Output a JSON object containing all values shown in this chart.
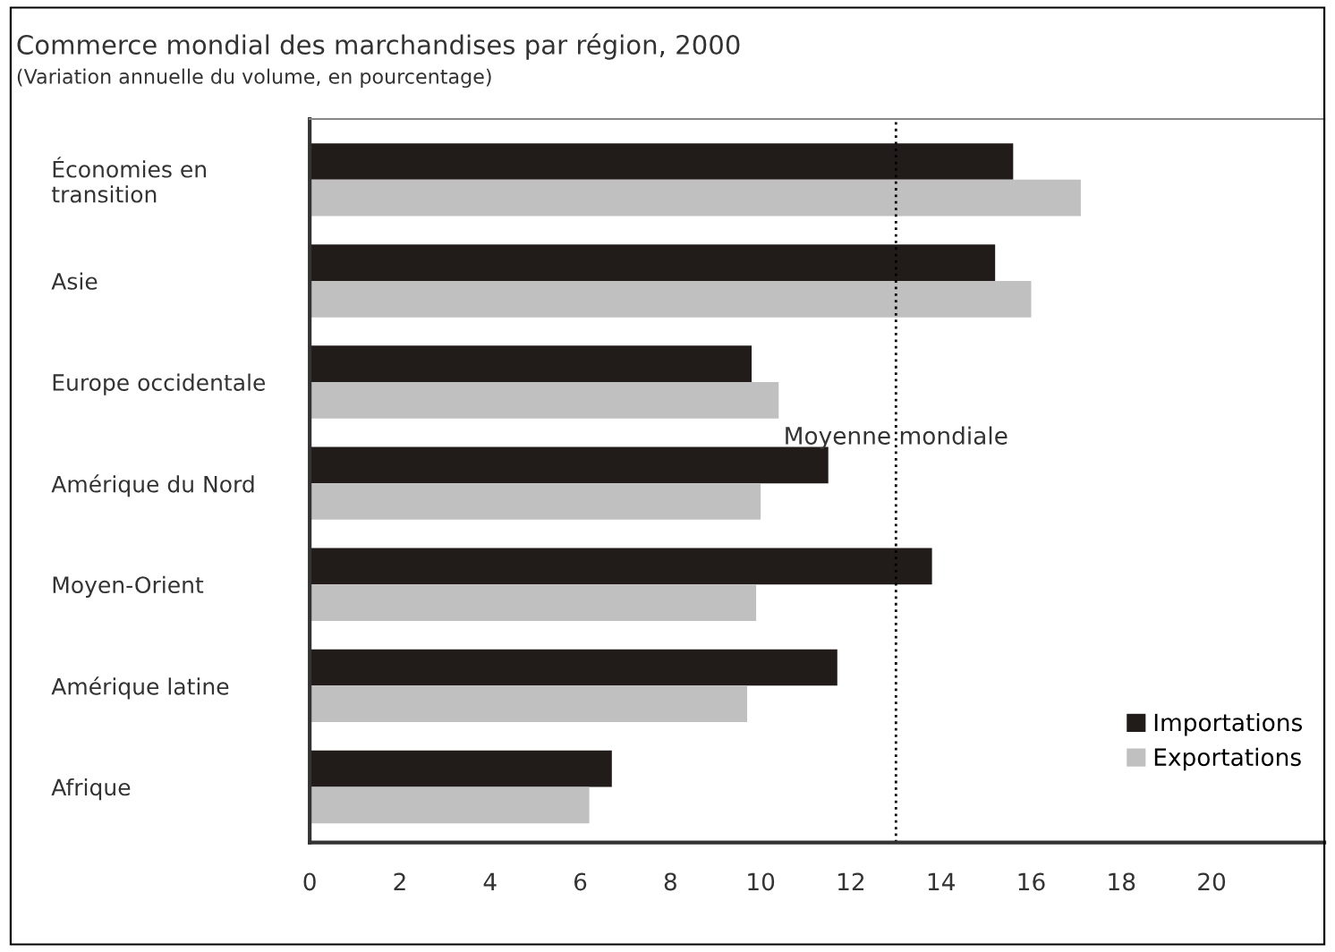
{
  "chart_data": {
    "type": "bar",
    "orientation": "horizontal",
    "title": "Commerce mondial des marchandises par région, 2000",
    "subtitle": "(Variation annuelle du volume, en pourcentage)",
    "categories": [
      "Économies en\ntransition",
      "Asie",
      "Europe occidentale",
      "Amérique du Nord",
      "Moyen-Orient",
      "Amérique latine",
      "Afrique"
    ],
    "series": [
      {
        "name": "Importations",
        "color": "#211c1a",
        "values": [
          15.6,
          15.2,
          9.8,
          11.5,
          13.8,
          11.7,
          6.7
        ]
      },
      {
        "name": "Exportations",
        "color": "#c0c0c0",
        "values": [
          17.1,
          16.0,
          10.4,
          10.0,
          9.9,
          9.7,
          6.2
        ]
      }
    ],
    "xlim": [
      0,
      22.5
    ],
    "xticks": [
      0,
      2,
      4,
      6,
      8,
      10,
      12,
      14,
      16,
      18,
      20
    ],
    "ref_lines": [
      {
        "axis": "x",
        "value": 13.0,
        "label": "Moyenne mondiale",
        "line_style": "dotted",
        "color": "#000000"
      }
    ],
    "grid": false,
    "legend": "bottom right"
  }
}
